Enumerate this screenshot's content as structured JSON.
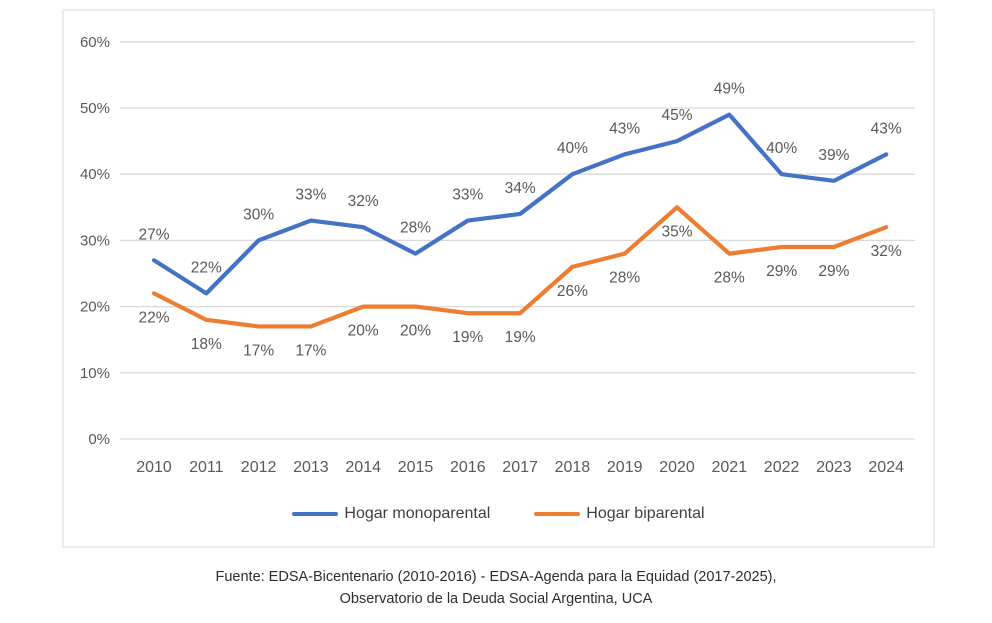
{
  "chart_data": {
    "type": "line",
    "categories": [
      "2010",
      "2011",
      "2012",
      "2013",
      "2014",
      "2015",
      "2016",
      "2017",
      "2018",
      "2019",
      "2020",
      "2021",
      "2022",
      "2023",
      "2024"
    ],
    "series": [
      {
        "name": "Hogar monoparental",
        "color": "#4472C4",
        "values": [
          27,
          22,
          30,
          33,
          32,
          28,
          33,
          34,
          40,
          43,
          45,
          49,
          40,
          39,
          43
        ],
        "data_labels": [
          "27%",
          "22%",
          "30%",
          "33%",
          "32%",
          "28%",
          "33%",
          "34%",
          "40%",
          "43%",
          "45%",
          "49%",
          "40%",
          "39%",
          "43%"
        ],
        "label_position": "above"
      },
      {
        "name": "Hogar biparental",
        "color": "#ED7D31",
        "values": [
          22,
          18,
          17,
          17,
          20,
          20,
          19,
          19,
          26,
          28,
          35,
          28,
          29,
          29,
          32
        ],
        "data_labels": [
          "22%",
          "18%",
          "17%",
          "17%",
          "20%",
          "20%",
          "19%",
          "19%",
          "26%",
          "28%",
          "35%",
          "28%",
          "29%",
          "29%",
          "32%"
        ],
        "label_position": "below"
      }
    ],
    "title": "",
    "xlabel": "",
    "ylabel": "",
    "ylim": [
      0,
      60
    ],
    "yticks": [
      "0%",
      "10%",
      "20%",
      "30%",
      "40%",
      "50%",
      "60%"
    ],
    "ytick_step": 10,
    "grid": true,
    "legend_position": "bottom",
    "data_labels_shown": true,
    "colors": {
      "gridline": "#d9d9d9",
      "axis_text": "#595959",
      "data_label_text": "#595959"
    }
  },
  "footer": {
    "line1": "Fuente: EDSA-Bicentenario (2010-2016) - EDSA-Agenda para la Equidad (2017-2025),",
    "line2": "Observatorio de la Deuda Social Argentina, UCA"
  }
}
